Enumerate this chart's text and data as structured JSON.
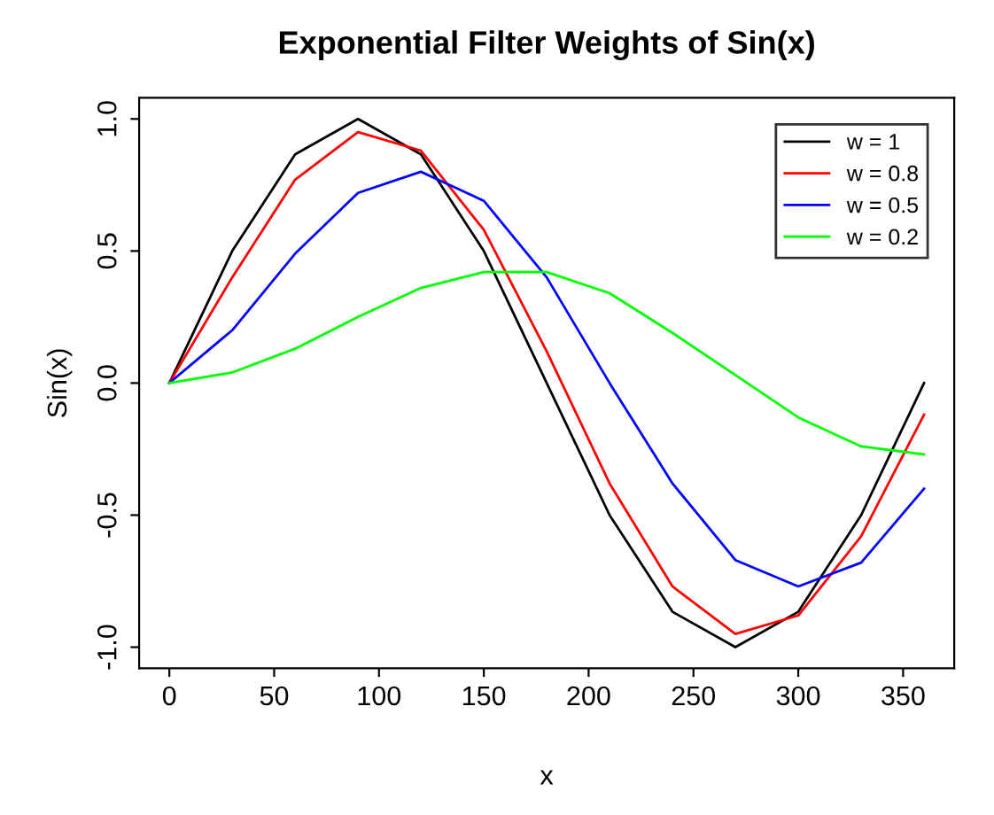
{
  "chart_data": {
    "type": "line",
    "title": "Exponential Filter Weights of Sin(x)",
    "xlabel": "x",
    "ylabel": "Sin(x)",
    "x": [
      0,
      30,
      60,
      90,
      120,
      150,
      180,
      210,
      240,
      270,
      300,
      330,
      360
    ],
    "series": [
      {
        "name": "w = 1",
        "color": "#000000",
        "values": [
          0,
          0.5,
          0.866,
          1,
          0.866,
          0.5,
          0,
          -0.5,
          -0.866,
          -1,
          -0.866,
          -0.5,
          0
        ]
      },
      {
        "name": "w = 0.8",
        "color": "#ff0000",
        "values": [
          0,
          0.4,
          0.77,
          0.95,
          0.88,
          0.58,
          0.12,
          -0.38,
          -0.77,
          -0.95,
          -0.88,
          -0.58,
          -0.12
        ]
      },
      {
        "name": "w = 0.5",
        "color": "#0000ff",
        "values": [
          0,
          0.2,
          0.49,
          0.72,
          0.8,
          0.69,
          0.4,
          0,
          -0.38,
          -0.67,
          -0.77,
          -0.68,
          -0.4
        ]
      },
      {
        "name": "w = 0.2",
        "color": "#00ff00",
        "values": [
          0,
          0.04,
          0.13,
          0.25,
          0.36,
          0.42,
          0.42,
          0.34,
          0.19,
          0.03,
          -0.13,
          -0.24,
          -0.27
        ]
      }
    ],
    "xlim": [
      -14.4,
      374.4
    ],
    "ylim": [
      -1.08,
      1.08
    ],
    "xticks": [
      0,
      50,
      100,
      150,
      200,
      250,
      300,
      350
    ],
    "yticks": [
      {
        "value": -1,
        "label": "-1.0"
      },
      {
        "value": -0.5,
        "label": "-0.5"
      },
      {
        "value": 0,
        "label": "0.0"
      },
      {
        "value": 0.5,
        "label": "0.5"
      },
      {
        "value": 1,
        "label": "1.0"
      }
    ],
    "legend": "top right",
    "grid": false,
    "marker": "none",
    "line_style": "solid"
  }
}
